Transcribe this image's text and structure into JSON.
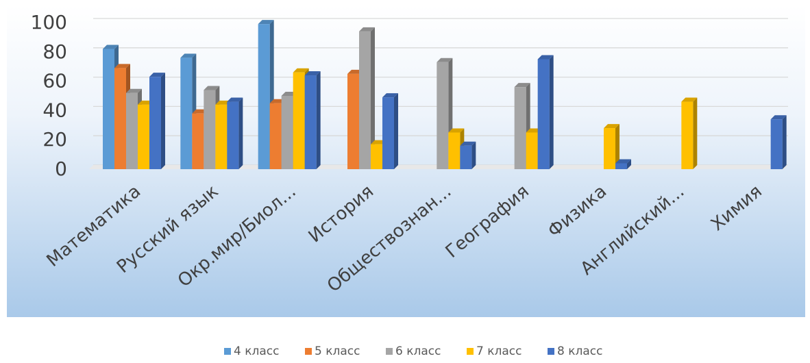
{
  "chart_data": {
    "type": "bar",
    "style": "3d-clustered-column",
    "categories": [
      "Математика",
      "Русский язык",
      "Окр.мир/Биол...",
      "История",
      "Обществознан...",
      "География",
      "Физика",
      "Английский...",
      "Химия"
    ],
    "series": [
      {
        "name": "4 класс",
        "color": "#5B9BD5",
        "values": [
          82,
          76,
          99,
          null,
          null,
          null,
          null,
          null,
          null
        ]
      },
      {
        "name": "5 класс",
        "color": "#ED7D31",
        "values": [
          69,
          38,
          45,
          65,
          null,
          null,
          null,
          null,
          null
        ]
      },
      {
        "name": "6 класс",
        "color": "#A5A5A5",
        "values": [
          52,
          54,
          50,
          94,
          73,
          56,
          null,
          null,
          null
        ]
      },
      {
        "name": "7 класс",
        "color": "#FFC000",
        "values": [
          44,
          44,
          66,
          17,
          25,
          25,
          28,
          46,
          null
        ]
      },
      {
        "name": "8 класс",
        "color": "#4472C4",
        "values": [
          63,
          46,
          64,
          49,
          16,
          75,
          4,
          null,
          34
        ]
      }
    ],
    "y_ticks": [
      "0",
      "20",
      "40",
      "60",
      "80",
      "100"
    ],
    "ylim": [
      0,
      100
    ],
    "grid": true,
    "legend_position": "bottom"
  }
}
